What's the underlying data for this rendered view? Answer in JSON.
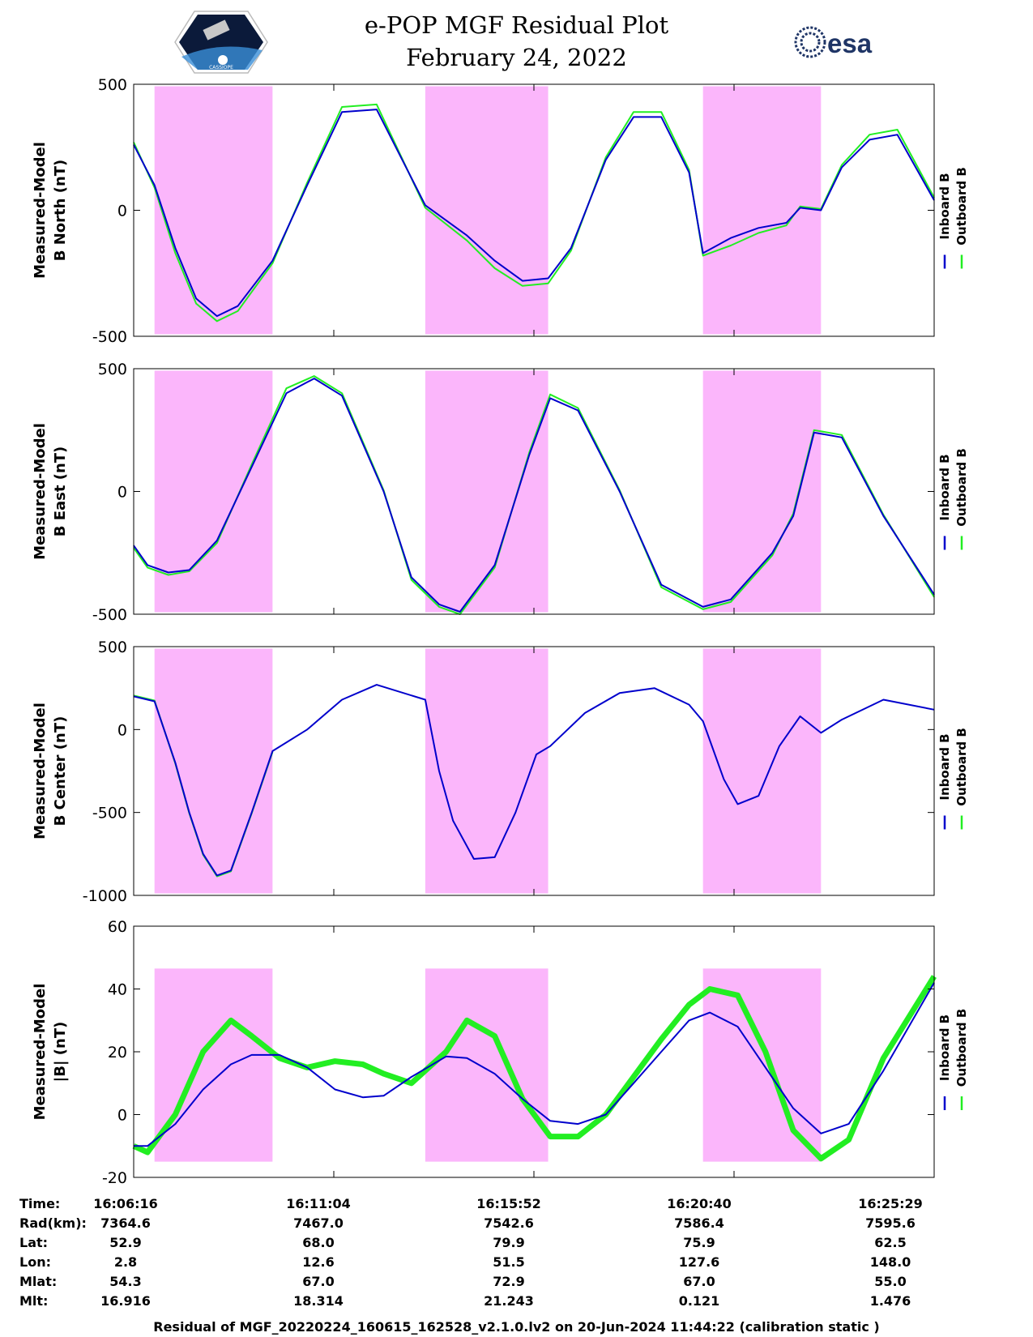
{
  "title": {
    "line1": "e-POP MGF Residual Plot",
    "line2": "February 24, 2022"
  },
  "logos": {
    "left": "CASSIOPE",
    "right": "esa"
  },
  "colors": {
    "inboard": "#0000cc",
    "outboard": "#22ee22",
    "shade": "#fbb6fb",
    "axis": "#000000"
  },
  "legend": {
    "inboard": "Inboard B",
    "outboard": "Outboard B"
  },
  "x_axis": {
    "tick_labels": [
      "16:06:16",
      "16:11:04",
      "16:15:52",
      "16:20:40",
      "16:25:29"
    ],
    "range": [
      0,
      1153
    ]
  },
  "chart_data": [
    {
      "type": "line",
      "ylabel": [
        "Measured-Model",
        "B North (nT)"
      ],
      "ylim": [
        -500,
        500
      ],
      "yticks": [
        500,
        0,
        -500
      ],
      "shaded_intervals": [
        [
          30,
          200
        ],
        [
          420,
          597
        ],
        [
          820,
          990
        ]
      ],
      "series": [
        {
          "name": "Inboard B",
          "x": [
            0,
            30,
            60,
            90,
            120,
            150,
            200,
            250,
            300,
            350,
            420,
            480,
            520,
            560,
            597,
            630,
            680,
            720,
            760,
            800,
            820,
            860,
            900,
            940,
            960,
            990,
            1020,
            1060,
            1100,
            1153
          ],
          "y": [
            260,
            100,
            -150,
            -350,
            -420,
            -380,
            -200,
            100,
            390,
            400,
            20,
            -100,
            -200,
            -280,
            -270,
            -150,
            200,
            370,
            370,
            150,
            -170,
            -110,
            -70,
            -50,
            10,
            0,
            170,
            280,
            300,
            40
          ]
        },
        {
          "name": "Outboard B",
          "x": [
            0,
            30,
            60,
            90,
            120,
            150,
            200,
            250,
            300,
            350,
            420,
            480,
            520,
            560,
            597,
            630,
            680,
            720,
            760,
            800,
            820,
            860,
            900,
            940,
            960,
            990,
            1020,
            1060,
            1100,
            1153
          ],
          "y": [
            270,
            90,
            -170,
            -370,
            -440,
            -400,
            -210,
            110,
            410,
            420,
            10,
            -120,
            -230,
            -300,
            -290,
            -160,
            210,
            390,
            390,
            160,
            -180,
            -140,
            -90,
            -60,
            15,
            5,
            180,
            300,
            320,
            50
          ]
        }
      ]
    },
    {
      "type": "line",
      "ylabel": [
        "Measured-Model",
        "B East (nT)"
      ],
      "ylim": [
        -500,
        500
      ],
      "yticks": [
        500,
        0,
        -500
      ],
      "shaded_intervals": [
        [
          30,
          200
        ],
        [
          420,
          597
        ],
        [
          820,
          990
        ]
      ],
      "series": [
        {
          "name": "Inboard B",
          "x": [
            0,
            20,
            50,
            80,
            120,
            170,
            220,
            260,
            300,
            360,
            400,
            440,
            470,
            520,
            570,
            600,
            640,
            700,
            760,
            820,
            860,
            920,
            950,
            980,
            1020,
            1080,
            1153
          ],
          "y": [
            -220,
            -300,
            -330,
            -320,
            -200,
            100,
            400,
            460,
            390,
            0,
            -350,
            -460,
            -490,
            -300,
            150,
            380,
            330,
            0,
            -380,
            -470,
            -440,
            -250,
            -100,
            240,
            220,
            -100,
            -420
          ]
        },
        {
          "name": "Outboard B",
          "x": [
            0,
            20,
            50,
            80,
            120,
            170,
            220,
            260,
            300,
            360,
            400,
            440,
            470,
            520,
            570,
            600,
            640,
            700,
            760,
            820,
            860,
            920,
            950,
            980,
            1020,
            1080,
            1153
          ],
          "y": [
            -230,
            -310,
            -340,
            -325,
            -210,
            110,
            420,
            470,
            400,
            5,
            -360,
            -470,
            -500,
            -310,
            160,
            395,
            340,
            5,
            -390,
            -480,
            -450,
            -260,
            -90,
            250,
            230,
            -95,
            -430
          ]
        }
      ]
    },
    {
      "type": "line",
      "ylabel": [
        "Measured-Model",
        "B Center (nT)"
      ],
      "ylim": [
        -1000,
        500
      ],
      "yticks": [
        500,
        0,
        -500,
        -1000
      ],
      "shaded_intervals": [
        [
          30,
          200
        ],
        [
          420,
          597
        ],
        [
          820,
          990
        ]
      ],
      "series": [
        {
          "name": "Inboard B",
          "x": [
            0,
            30,
            60,
            80,
            100,
            120,
            140,
            170,
            200,
            250,
            300,
            350,
            420,
            440,
            460,
            490,
            520,
            550,
            580,
            600,
            650,
            700,
            750,
            800,
            820,
            850,
            870,
            900,
            930,
            960,
            990,
            1020,
            1080,
            1153
          ],
          "y": [
            200,
            170,
            -200,
            -500,
            -750,
            -880,
            -850,
            -500,
            -130,
            0,
            180,
            270,
            180,
            -250,
            -550,
            -780,
            -770,
            -500,
            -150,
            -100,
            100,
            220,
            250,
            150,
            50,
            -300,
            -450,
            -400,
            -100,
            80,
            -20,
            60,
            180,
            120
          ]
        },
        {
          "name": "Outboard B",
          "x": [
            0,
            30,
            60,
            80,
            100,
            120,
            140,
            170,
            200
          ],
          "y": [
            205,
            175,
            -205,
            -505,
            -755,
            -885,
            -855,
            -505,
            -135
          ]
        }
      ]
    },
    {
      "type": "line",
      "ylabel": [
        "Measured-Model",
        "|B| (nT)"
      ],
      "ylim": [
        -20,
        60
      ],
      "yticks": [
        60,
        40,
        20,
        0,
        -20
      ],
      "shaded_intervals": [
        [
          30,
          200
        ],
        [
          420,
          597
        ],
        [
          820,
          990
        ]
      ],
      "series": [
        {
          "name": "Inboard B",
          "x": [
            0,
            20,
            60,
            100,
            140,
            170,
            210,
            250,
            290,
            330,
            360,
            400,
            450,
            480,
            520,
            560,
            600,
            640,
            680,
            720,
            760,
            800,
            830,
            870,
            910,
            950,
            990,
            1030,
            1080,
            1153
          ],
          "y": [
            -10,
            -10,
            -3,
            8,
            16,
            19,
            19,
            15,
            8,
            5.5,
            6,
            12,
            18.5,
            18,
            13,
            5,
            -2,
            -3,
            0,
            10,
            20,
            30,
            32.5,
            28,
            15,
            2,
            -6,
            -3,
            14,
            42
          ]
        },
        {
          "name": "Outboard B",
          "x": [
            0,
            20,
            60,
            100,
            140,
            170,
            210,
            250,
            290,
            330,
            360,
            400,
            450,
            480,
            520,
            560,
            600,
            640,
            680,
            720,
            760,
            800,
            830,
            870,
            910,
            950,
            990,
            1030,
            1080,
            1153
          ],
          "y": [
            -10,
            -12,
            0,
            20,
            30,
            25,
            18,
            15,
            17,
            16,
            13,
            10,
            20,
            30,
            25,
            5,
            -7,
            -7,
            0,
            12,
            24,
            35,
            40,
            38,
            20,
            -5,
            -14,
            -8,
            18,
            44
          ]
        }
      ]
    }
  ],
  "ephemeris": {
    "labels": [
      "Time:",
      "Rad(km):",
      "Lat:",
      "Lon:",
      "Mlat:",
      "Mlt:"
    ],
    "columns": [
      {
        "Time": "16:06:16",
        "Rad": "7364.6",
        "Lat": "52.9",
        "Lon": "2.8",
        "Mlat": "54.3",
        "Mlt": "16.916"
      },
      {
        "Time": "16:11:04",
        "Rad": "7467.0",
        "Lat": "68.0",
        "Lon": "12.6",
        "Mlat": "67.0",
        "Mlt": "18.314"
      },
      {
        "Time": "16:15:52",
        "Rad": "7542.6",
        "Lat": "79.9",
        "Lon": "51.5",
        "Mlat": "72.9",
        "Mlt": "21.243"
      },
      {
        "Time": "16:20:40",
        "Rad": "7586.4",
        "Lat": "75.9",
        "Lon": "127.6",
        "Mlat": "67.0",
        "Mlt": "0.121"
      },
      {
        "Time": "16:25:29",
        "Rad": "7595.6",
        "Lat": "62.5",
        "Lon": "148.0",
        "Mlat": "55.0",
        "Mlt": "1.476"
      }
    ]
  },
  "footer": "Residual of MGF_20220224_160615_162528_v2.1.0.lv2 on 20-Jun-2024 11:44:22 (calibration static )"
}
